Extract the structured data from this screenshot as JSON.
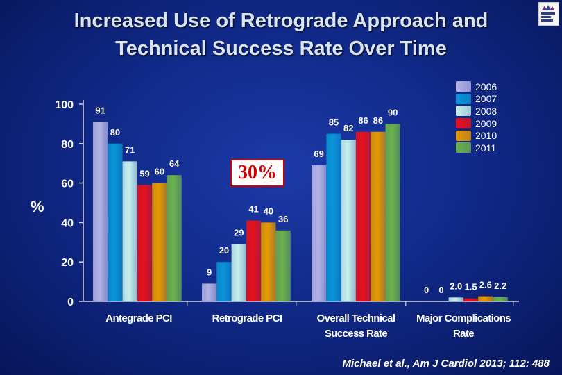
{
  "title_line1": "Increased Use of Retrograde Approach and",
  "title_line2": "Technical Success Rate Over Time",
  "y_axis_symbol": "%",
  "callout": "30%",
  "citation": "Michael et al., Am J Cardiol 2013; 112: 488",
  "logo_text": [
    "Mount",
    "Sinai",
    "Heart"
  ],
  "chart_data": {
    "type": "bar",
    "title": "Increased Use of Retrograde Approach and Technical Success Rate Over Time",
    "ylabel": "%",
    "ylim": [
      0,
      100
    ],
    "yticks": [
      0,
      20,
      40,
      60,
      80,
      100
    ],
    "categories": [
      [
        "Antegrade PCI"
      ],
      [
        "Retrograde PCI"
      ],
      [
        "Overall Technical",
        "Success Rate"
      ],
      [
        "Major Complications",
        "Rate"
      ]
    ],
    "series": [
      {
        "name": "2006",
        "color": "#b3b3e6",
        "values": [
          91,
          9,
          69,
          0
        ],
        "labels": [
          "91",
          "9",
          "69",
          "0"
        ]
      },
      {
        "name": "2007",
        "color": "#0a95d8",
        "values": [
          80,
          20,
          85,
          0
        ],
        "labels": [
          "80",
          "20",
          "85",
          "0"
        ]
      },
      {
        "name": "2008",
        "color": "#c6f0ec",
        "values": [
          71,
          29,
          82,
          2.0
        ],
        "labels": [
          "71",
          "29",
          "82",
          "2.0"
        ]
      },
      {
        "name": "2009",
        "color": "#e8111b",
        "values": [
          59,
          41,
          86,
          1.5
        ],
        "labels": [
          "59",
          "41",
          "86",
          "1.5"
        ]
      },
      {
        "name": "2010",
        "color": "#e69a00",
        "values": [
          60,
          40,
          86,
          2.6
        ],
        "labels": [
          "60",
          "40",
          "86",
          "2.6"
        ]
      },
      {
        "name": "2011",
        "color": "#6cb24c",
        "values": [
          64,
          36,
          90,
          2.2
        ],
        "labels": [
          "64",
          "36",
          "90",
          "2.2"
        ]
      }
    ]
  }
}
